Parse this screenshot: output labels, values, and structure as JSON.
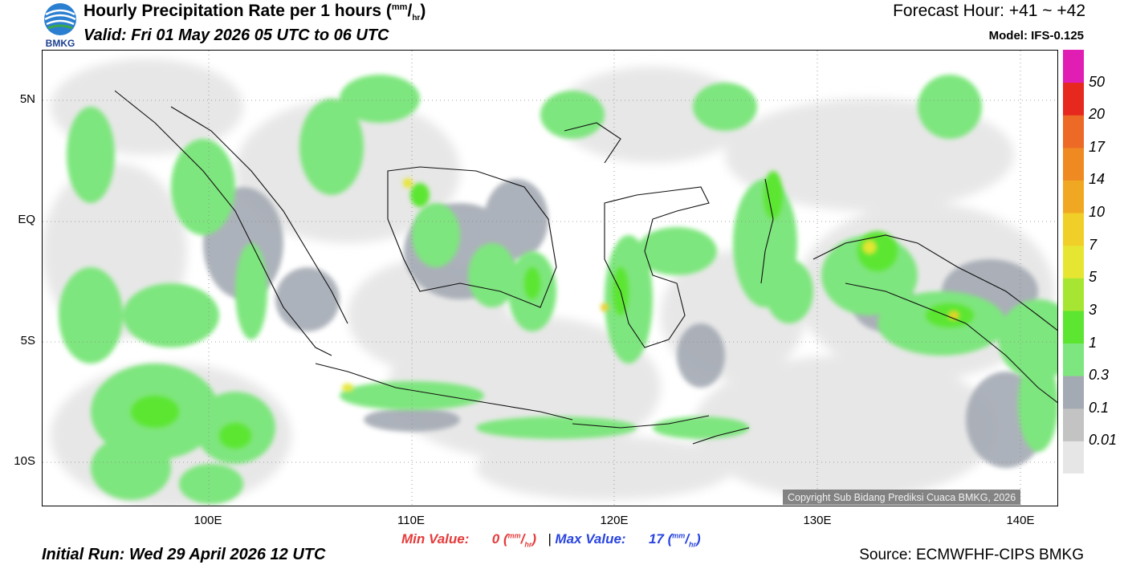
{
  "header": {
    "title_main": "Hourly Precipitation Rate per 1 hours (",
    "title_unit_num": "mm",
    "title_unit_slash": "/",
    "title_unit_den": "hr",
    "title_close": ")",
    "valid": "Valid: Fri 01 May 2026 05 UTC to 06 UTC",
    "forecast_hour": "Forecast Hour: +41 ~ +42",
    "model": "Model: IFS-0.125",
    "logo_text": "BMKG"
  },
  "axes": {
    "y_labels": [
      {
        "text": "5N",
        "lat": 5
      },
      {
        "text": "EQ",
        "lat": 0
      },
      {
        "text": "5S",
        "lat": -5
      },
      {
        "text": "10S",
        "lat": -10
      }
    ],
    "x_labels": [
      {
        "text": "100E",
        "lon": 100
      },
      {
        "text": "110E",
        "lon": 110
      },
      {
        "text": "120E",
        "lon": 120
      },
      {
        "text": "130E",
        "lon": 130
      },
      {
        "text": "140E",
        "lon": 140
      }
    ]
  },
  "legend": {
    "labels": [
      "0.01",
      "0.1",
      "0.3",
      "1",
      "3",
      "5",
      "7",
      "10",
      "14",
      "17",
      "20",
      "50"
    ],
    "colors": [
      "#e6e6e6",
      "#c3c3c3",
      "#a4aab4",
      "#7ee67e",
      "#5ce632",
      "#a6e632",
      "#e6e632",
      "#f0cf28",
      "#f0a823",
      "#ef8a22",
      "#ec6a26",
      "#e6281e",
      "#e01eb4"
    ]
  },
  "stats": {
    "min_label": "Min Value:",
    "min_value": "0",
    "max_label": "Max Value:",
    "max_value": "17",
    "unit_num": "mm",
    "unit_slash": "/",
    "unit_den": "hr",
    "separator": "|"
  },
  "footer": {
    "initial_run": "Initial Run: Wed 29 April 2026 12 UTC",
    "source": "Source: ECMWFHF-CIPS BMKG",
    "copyright": "Copyright Sub Bidang Prediksi Cuaca BMKG, 2026"
  }
}
